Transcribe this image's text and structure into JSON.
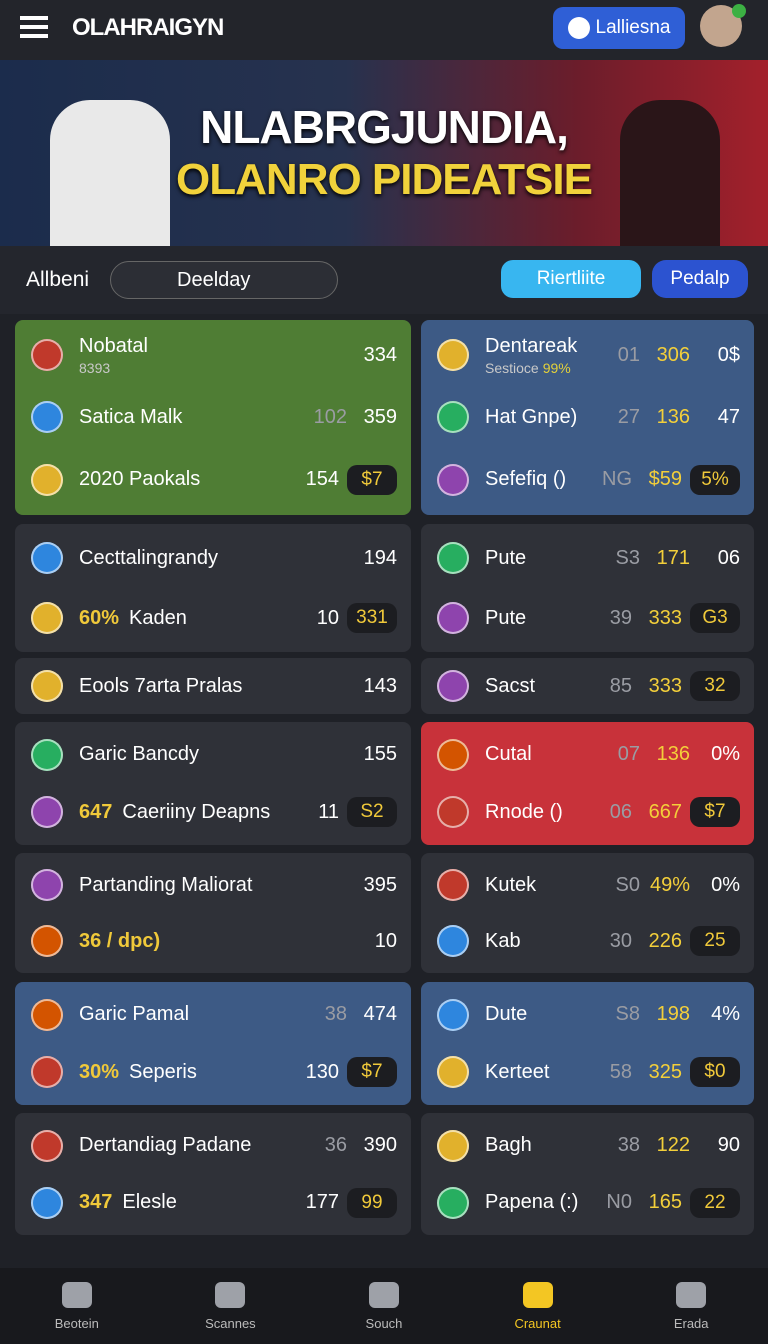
{
  "header": {
    "logo": "OLAHRAIGYN",
    "account_button": "Lalliesna"
  },
  "hero": {
    "line1": "NLABRGJUNDIA,",
    "line2": "OLANRO PIDEATSIE"
  },
  "toolbar": {
    "label": "Allbeni",
    "dropdown": "Deelday",
    "button_primary": "Riertliite",
    "button_secondary": "Pedalp"
  },
  "sections": [
    {
      "left": {
        "color": "#4f7d34",
        "rows": [
          {
            "name": "Nobatal",
            "sub": "8393",
            "cols": [
              "334"
            ]
          },
          {
            "name": "Satica Malk",
            "cols": [
              "102",
              "359"
            ]
          },
          {
            "name": "2020 Paokals",
            "cols": [
              "154"
            ],
            "pill": "$7"
          }
        ]
      },
      "right": {
        "color": "#3d5a85",
        "rows": [
          {
            "name": "Dentareak",
            "sub": "Sestioce",
            "sub_value": "99%",
            "cols": [
              "01",
              "306",
              "0$"
            ]
          },
          {
            "name": "Hat Gnpe)",
            "cols": [
              "27",
              "136",
              "47"
            ]
          },
          {
            "name": "Sefefiq ()",
            "cols": [
              "NG",
              "$59"
            ],
            "pill": "5%"
          }
        ]
      }
    },
    {
      "left": {
        "color": "#2f3138",
        "rows": [
          {
            "name": "Cecttalingrandy",
            "cols": [
              "194"
            ]
          },
          {
            "lead": "60%",
            "name": "Kaden",
            "cols": [
              "10"
            ],
            "pill": "331"
          }
        ]
      },
      "right": {
        "color": "#2f3138",
        "rows": [
          {
            "name": "Pute",
            "cols": [
              "S3",
              "171",
              "06"
            ]
          },
          {
            "name": "Pute",
            "cols": [
              "39",
              "333"
            ],
            "pill": "G3"
          }
        ]
      }
    },
    {
      "left": {
        "color": "#2f3138",
        "rows": [
          {
            "name": "Eools 7arta Pralas",
            "cols": [
              "143"
            ]
          }
        ]
      },
      "right": {
        "color": "#2f3138",
        "rows": [
          {
            "name": "Sacst",
            "cols": [
              "85",
              "333"
            ],
            "pill": "32"
          }
        ]
      }
    },
    {
      "left": {
        "color": "#2f3138",
        "rows": [
          {
            "name": "Garic Bancdy",
            "cols": [
              "155"
            ]
          },
          {
            "lead": "647",
            "name": "Caeriiny Deapns",
            "cols": [
              "11"
            ],
            "pill": "S2"
          }
        ]
      },
      "right": {
        "color": "#c8323a",
        "rows": [
          {
            "name": "Cutal",
            "cols": [
              "07",
              "136",
              "0%"
            ]
          },
          {
            "name": "Rnode ()",
            "cols": [
              "06",
              "667"
            ],
            "pill": "$7"
          }
        ]
      }
    },
    {
      "left": {
        "color": "#2f3138",
        "rows": [
          {
            "name": "Partanding Maliorat",
            "cols": [
              "395"
            ]
          },
          {
            "lead": "36 / dpc)",
            "cols": [
              "10"
            ]
          }
        ]
      },
      "right": {
        "color": "#2f3138",
        "rows": [
          {
            "name": "Kutek",
            "cols": [
              "S0",
              "49%",
              "0%"
            ]
          },
          {
            "name": "Kab",
            "cols": [
              "30",
              "226"
            ],
            "pill": "25"
          }
        ]
      }
    },
    {
      "left": {
        "color": "#3d5a85",
        "rows": [
          {
            "name": "Garic Pamal",
            "cols": [
              "38",
              "474"
            ]
          },
          {
            "lead": "30%",
            "name": "Seperis",
            "cols": [
              "130"
            ],
            "pill": "$7"
          }
        ]
      },
      "right": {
        "color": "#3d5a85",
        "rows": [
          {
            "name": "Dute",
            "cols": [
              "S8",
              "198",
              "4%"
            ]
          },
          {
            "name": "Kerteet",
            "cols": [
              "58",
              "325"
            ],
            "pill": "$0"
          }
        ]
      }
    },
    {
      "left": {
        "color": "#2f3138",
        "rows": [
          {
            "name": "Dertandiag Padane",
            "cols": [
              "36",
              "390"
            ]
          },
          {
            "lead": "347",
            "name": "Elesle",
            "cols": [
              "177"
            ],
            "pill": "99"
          }
        ]
      },
      "right": {
        "color": "#2f3138",
        "rows": [
          {
            "name": "Bagh",
            "cols": [
              "38",
              "122",
              "90"
            ]
          },
          {
            "name": "Papena (:)",
            "cols": [
              "N0",
              "165"
            ],
            "pill": "22"
          }
        ]
      }
    }
  ],
  "nav": [
    "Beotein",
    "Scannes",
    "Souch",
    "Craunat",
    "Erada"
  ]
}
